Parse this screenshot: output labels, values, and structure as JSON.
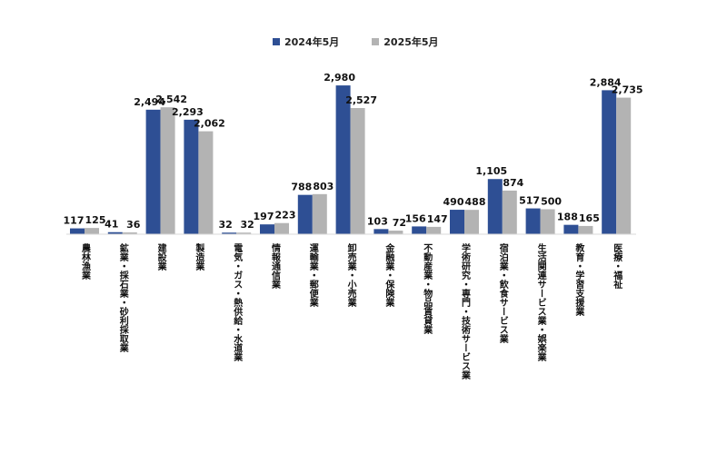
{
  "chart_data": {
    "type": "bar",
    "categories": [
      "農林漁業",
      "鉱業・採石業・砂利採取業",
      "建設業",
      "製造業",
      "電気・ガス・熱供給・水道業",
      "情報通信業",
      "運輸業・郵便業",
      "卸売業・小売業",
      "金融業・保険業",
      "不動産業・物品賃貸業",
      "学術研究・専門・技術サービス業",
      "宿泊業・飲食サービス業",
      "生活関連サービス業・娯楽業",
      "教育・学習支援業",
      "医療・福祉"
    ],
    "series": [
      {
        "name": "2024年5月",
        "color": "#2e4f94",
        "values": [
          117,
          41,
          2494,
          2293,
          32,
          197,
          788,
          2980,
          103,
          156,
          490,
          1105,
          517,
          188,
          2884
        ],
        "labels": [
          "117",
          "41",
          "2,494",
          "2,293",
          "32",
          "197",
          "788",
          "2,980",
          "103",
          "156",
          "490",
          "1,105",
          "517",
          "188",
          "2,884"
        ]
      },
      {
        "name": "2025年5月",
        "color": "#b3b3b3",
        "values": [
          125,
          36,
          2542,
          2062,
          32,
          223,
          803,
          2527,
          72,
          147,
          488,
          874,
          500,
          165,
          2735
        ],
        "labels": [
          "125",
          "36",
          "2,542",
          "2,062",
          "32",
          "223",
          "803",
          "2,527",
          "72",
          "147",
          "488",
          "874",
          "500",
          "165",
          "2,735"
        ]
      }
    ],
    "ylim": [
      0,
      3000
    ],
    "legend_position": "top-center",
    "grid": false
  }
}
